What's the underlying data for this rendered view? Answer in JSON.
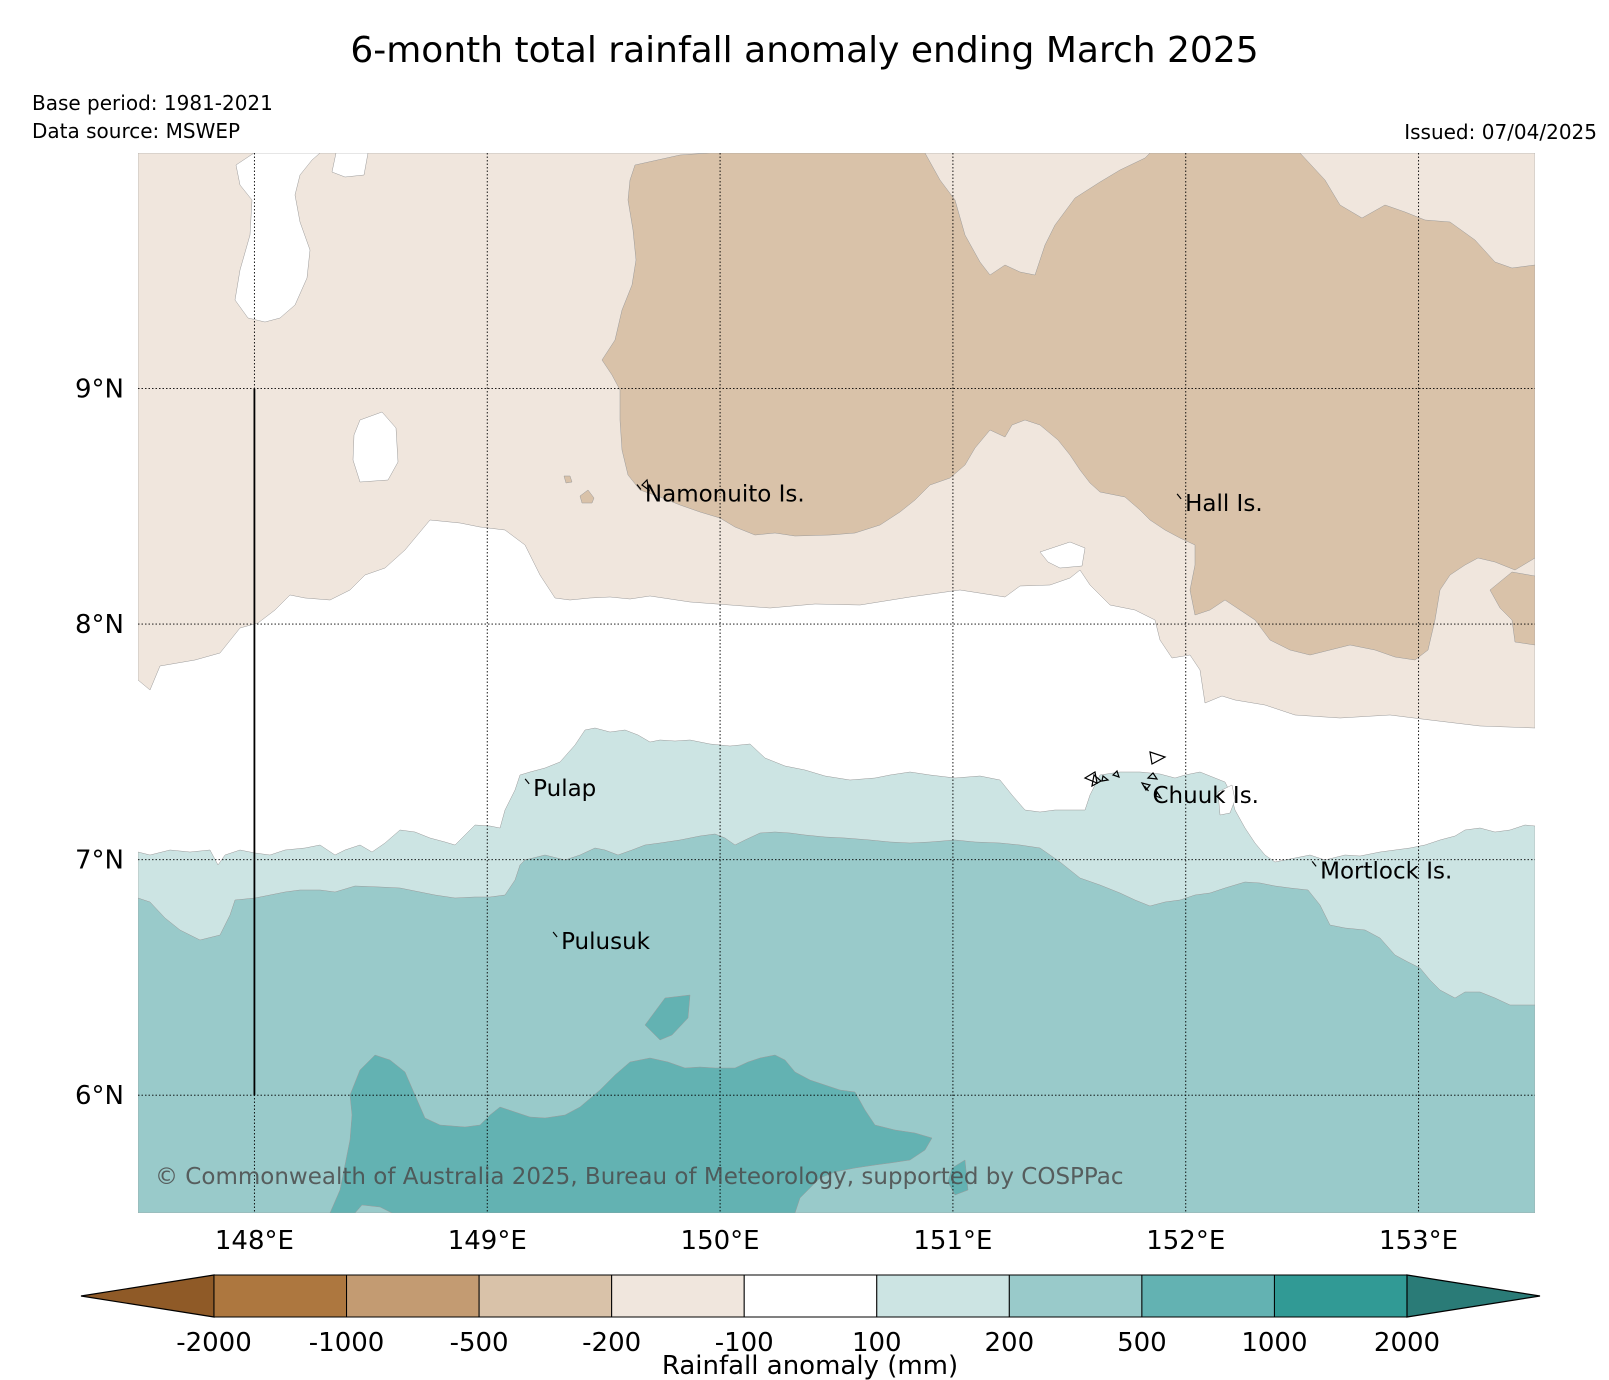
{
  "title": "6-month total rainfall anomaly ending March 2025",
  "base_period": "Base period: 1981-2021",
  "data_source": "Data source: MSWEP",
  "issued": "Issued: 07/04/2025",
  "copyright": "© Commonwealth of Australia 2025, Bureau of Meteorology, supported by COSPPac",
  "axes": {
    "lon_ticks": [
      "148°E",
      "149°E",
      "150°E",
      "151°E",
      "152°E",
      "153°E"
    ],
    "lat_ticks": [
      "9°N",
      "8°N",
      "7°N",
      "6°N"
    ]
  },
  "map_extent": {
    "lon": [
      147.5,
      153.5
    ],
    "lat": [
      5.5,
      10.0
    ]
  },
  "places": [
    {
      "name": "Namonuito Is.",
      "lon": 149.66,
      "lat": 8.58
    },
    {
      "name": "Hall Is.",
      "lon": 151.98,
      "lat": 8.54
    },
    {
      "name": "Pulap",
      "lon": 149.18,
      "lat": 7.33
    },
    {
      "name": "Chuuk Is.",
      "lon": 151.84,
      "lat": 7.3
    },
    {
      "name": "Mortlock Is.",
      "lon": 152.56,
      "lat": 6.98
    },
    {
      "name": "Pulusuk",
      "lon": 149.3,
      "lat": 6.68
    }
  ],
  "colorbar": {
    "title": "Rainfall anomaly (mm)",
    "tick_labels": [
      "-2000",
      "-1000",
      "-500",
      "-200",
      "-100",
      "100",
      "200",
      "500",
      "1000",
      "2000"
    ],
    "colors": [
      "#8f5a27",
      "#ad773f",
      "#c39b72",
      "#d9c2a9",
      "#f0e6dd",
      "#ffffff",
      "#cce4e3",
      "#99caca",
      "#63b2b2",
      "#319a95",
      "#2a7b77"
    ]
  }
}
